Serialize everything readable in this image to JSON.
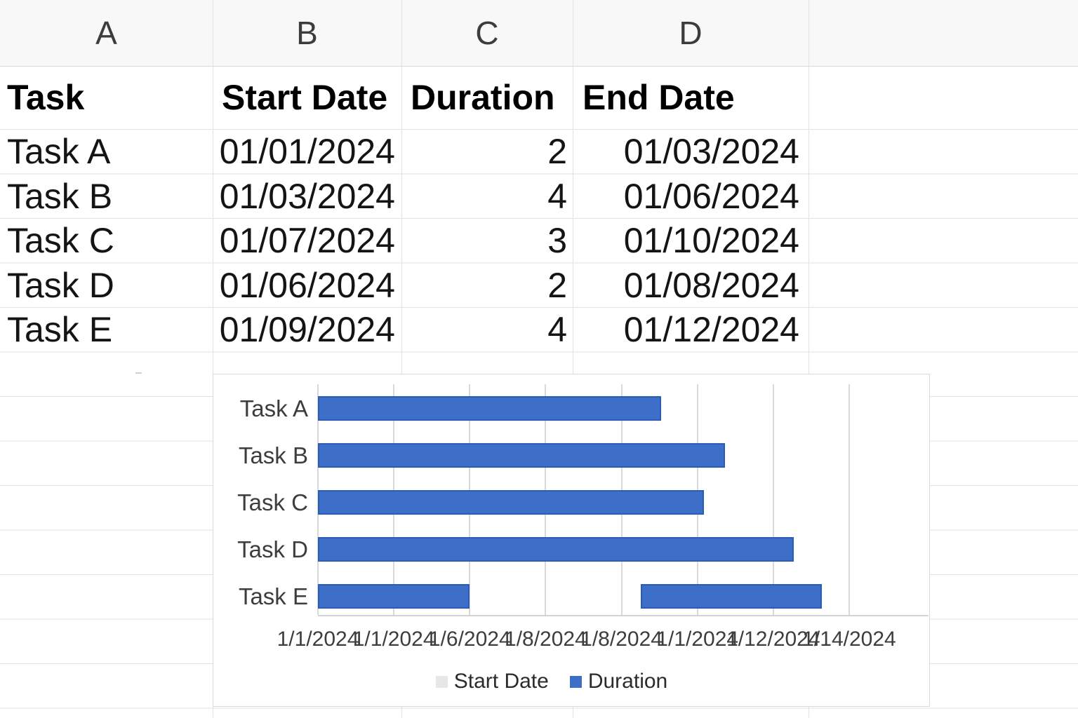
{
  "sheet": {
    "column_letters": [
      "A",
      "B",
      "C",
      "D"
    ],
    "header_row": [
      "Task",
      "Start Date",
      "Duration",
      "End Date"
    ],
    "rows": [
      [
        "Task A",
        "01/01/2024",
        "2",
        "01/03/2024"
      ],
      [
        "Task B",
        "01/03/2024",
        "4",
        "01/06/2024"
      ],
      [
        "Task C",
        "01/07/2024",
        "3",
        "01/10/2024"
      ],
      [
        "Task D",
        "01/06/2024",
        "2",
        "01/08/2024"
      ],
      [
        "Task E",
        "01/09/2024",
        "4",
        "01/12/2024"
      ]
    ]
  },
  "chart_data": {
    "type": "bar",
    "orientation": "horizontal",
    "title": "",
    "categories": [
      "Task A",
      "Task B",
      "Task C",
      "Task D",
      "Task E"
    ],
    "x_tick_labels": [
      "1/1/2024",
      "1/1/2024",
      "1/6/2024",
      "1/8/2024",
      "1/8/2024",
      "1/1/2024",
      "1/12/2024",
      "1/14/2024"
    ],
    "series": [
      {
        "name": "Start Date",
        "color": "#e7e7e7"
      },
      {
        "name": "Duration",
        "color": "#3d6fc9"
      }
    ],
    "tasks": [
      {
        "name": "Task A",
        "start": "01/01/2024",
        "duration": 2,
        "end": "01/03/2024"
      },
      {
        "name": "Task B",
        "start": "01/03/2024",
        "duration": 4,
        "end": "01/06/2024"
      },
      {
        "name": "Task C",
        "start": "01/07/2024",
        "duration": 3,
        "end": "01/10/2024"
      },
      {
        "name": "Task D",
        "start": "01/06/2024",
        "duration": 2,
        "end": "01/08/2024"
      },
      {
        "name": "Task E",
        "start": "01/09/2024",
        "duration": 4,
        "end": "01/12/2024"
      }
    ],
    "bars": [
      {
        "category": "Task A",
        "segments": [
          [
            0,
            4.52
          ]
        ]
      },
      {
        "category": "Task B",
        "segments": [
          [
            0,
            5.36
          ]
        ]
      },
      {
        "category": "Task C",
        "segments": [
          [
            0,
            5.09
          ]
        ]
      },
      {
        "category": "Task D",
        "segments": [
          [
            0,
            6.27
          ]
        ]
      },
      {
        "category": "Task E",
        "segments": [
          [
            0,
            2.0
          ],
          [
            4.25,
            6.64
          ]
        ]
      }
    ],
    "axis_unit": "tick-intervals",
    "grid": true,
    "legend_position": "bottom",
    "bar_color": "#3d6fc9",
    "bar_border_color": "#2b5cb7",
    "gridline_color": "#d9d9d9"
  }
}
